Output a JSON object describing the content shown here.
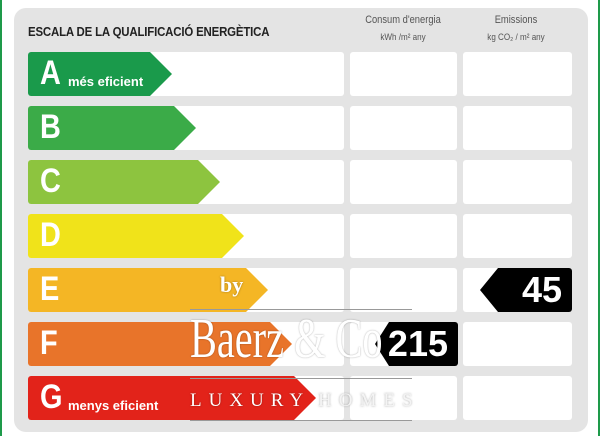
{
  "header": {
    "title": "ESCALA DE LA QUALIFICACIÓ ENERGÈTICA",
    "consumption_label": "Consum d'energia",
    "consumption_unit": "kWh /m² any",
    "emissions_label": "Emissions",
    "emissions_unit": "kg CO₂ / m² any"
  },
  "ratings": [
    {
      "letter": "A",
      "desc": "més eficient",
      "color": "#1a9a4b"
    },
    {
      "letter": "B",
      "desc": "",
      "color": "#3bab48"
    },
    {
      "letter": "C",
      "desc": "",
      "color": "#8dc43f"
    },
    {
      "letter": "D",
      "desc": "",
      "color": "#f0e31a"
    },
    {
      "letter": "E",
      "desc": "",
      "color": "#f4b625"
    },
    {
      "letter": "F",
      "desc": "",
      "color": "#e8742a"
    },
    {
      "letter": "G",
      "desc": "menys eficient",
      "color": "#e2231a"
    }
  ],
  "consumption": {
    "rating": "F",
    "value": "215"
  },
  "emissions": {
    "rating": "E",
    "value": "45"
  },
  "watermark": {
    "by": "by",
    "brand": "Baerz & Co",
    "tagline_left": "LUXURY",
    "tagline_right": "HOMES"
  }
}
